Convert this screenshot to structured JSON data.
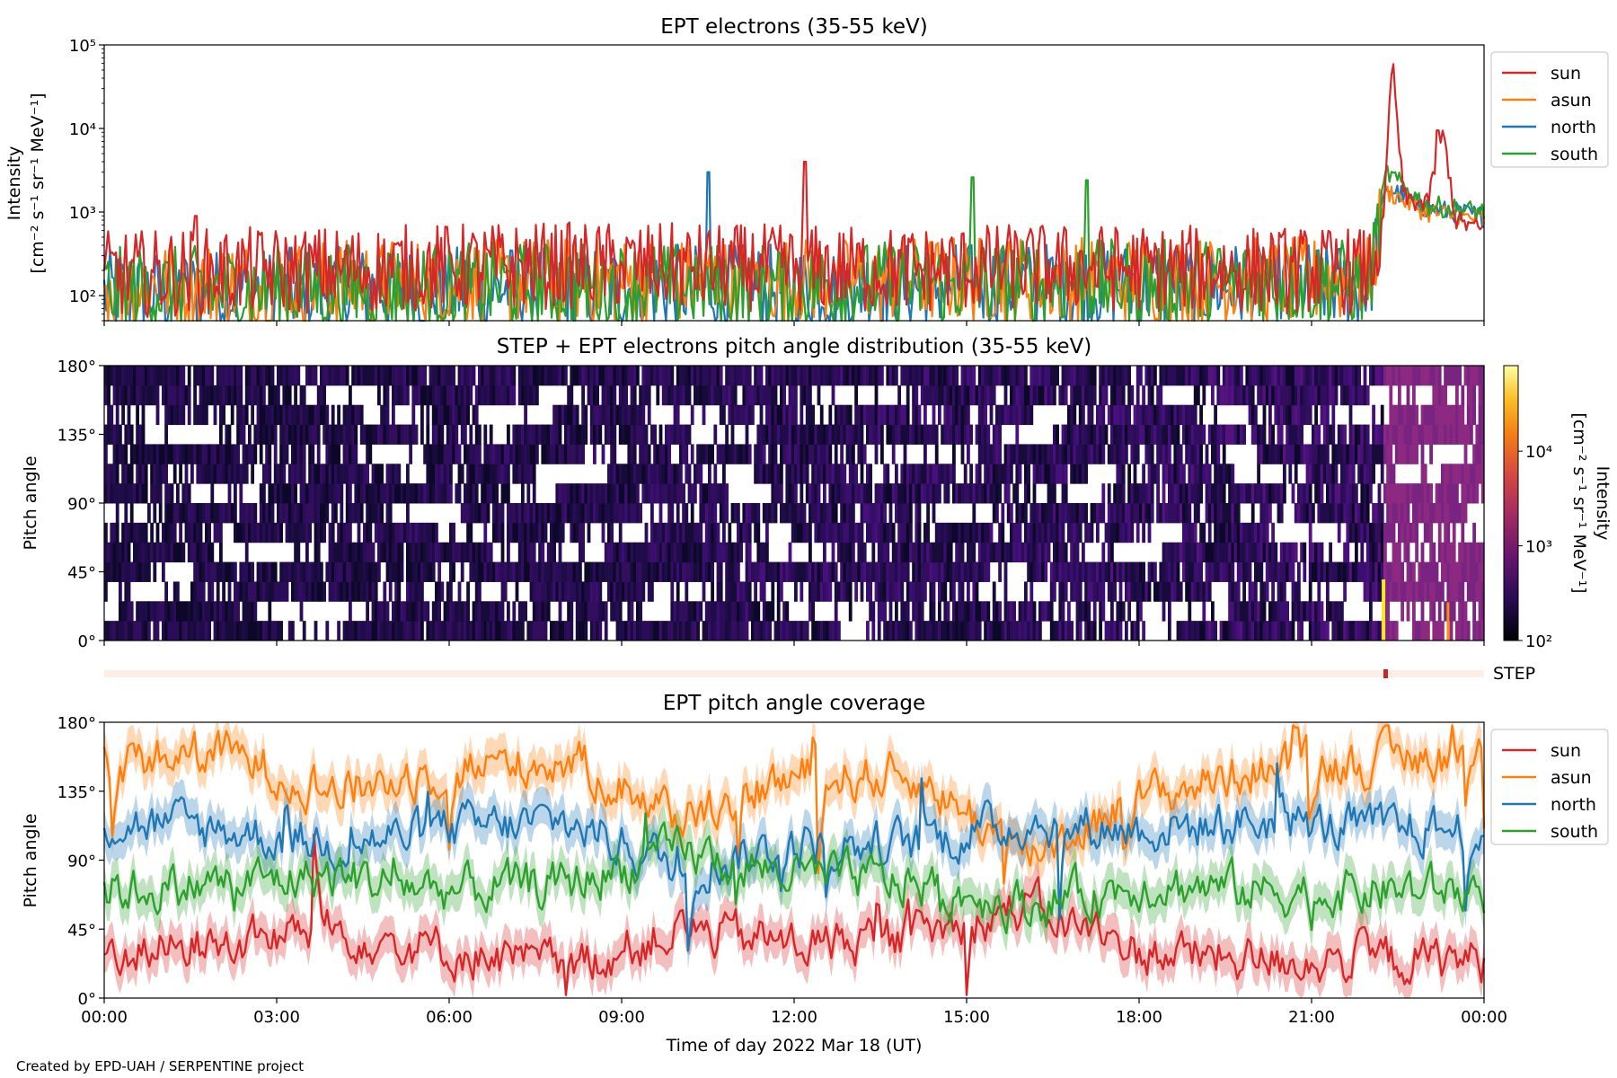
{
  "footer": "Created by EPD-UAH / SERPENTINE project",
  "xlabel": "Time of day 2022 Mar 18 (UT)",
  "x_ticks": [
    "00:00",
    "03:00",
    "06:00",
    "09:00",
    "12:00",
    "15:00",
    "18:00",
    "21:00",
    "00:00"
  ],
  "chart_data": [
    {
      "type": "line",
      "title": "EPT electrons (35-55 keV)",
      "ylabel_line1": "Intensity",
      "ylabel_line2": "[cm⁻² s⁻¹ sr⁻¹ MeV⁻¹]",
      "y_scale": "log",
      "ylim": [
        50,
        100000
      ],
      "y_ticks": [
        "10²",
        "10³",
        "10⁴",
        "10⁵"
      ],
      "xlim_hours": [
        0,
        24
      ],
      "legend_position": "right, outside top",
      "series": [
        {
          "name": "sun",
          "color": "#d62728",
          "x": [
            0,
            2,
            4,
            6,
            8,
            10,
            12,
            14,
            16,
            18,
            20,
            22,
            22.25,
            22.4,
            22.6,
            23,
            23.3,
            23.5,
            24
          ],
          "y": [
            200,
            220,
            230,
            250,
            260,
            250,
            240,
            230,
            250,
            240,
            230,
            220,
            700,
            70000,
            1500,
            1200,
            9000,
            800,
            600
          ],
          "spikes": [
            {
              "x": 1.6,
              "y": 900
            },
            {
              "x": 12.2,
              "y": 4000
            },
            {
              "x": 23.2,
              "y": 9500
            }
          ]
        },
        {
          "name": "asun",
          "color": "#ff7f0e",
          "x": [
            0,
            4,
            8,
            12,
            16,
            20,
            22,
            22.3,
            23,
            24
          ],
          "y": [
            150,
            160,
            170,
            170,
            180,
            170,
            170,
            1800,
            1000,
            800
          ]
        },
        {
          "name": "north",
          "color": "#1f77b4",
          "x": [
            0,
            4,
            8,
            12,
            16,
            20,
            22,
            22.3,
            23,
            24
          ],
          "y": [
            120,
            130,
            140,
            140,
            150,
            150,
            150,
            2000,
            1100,
            900
          ],
          "spikes": [
            {
              "x": 10.5,
              "y": 3000
            }
          ]
        },
        {
          "name": "south",
          "color": "#2ca02c",
          "x": [
            0,
            4,
            8,
            12,
            16,
            20,
            22,
            22.3,
            23,
            24
          ],
          "y": [
            130,
            140,
            150,
            150,
            160,
            160,
            160,
            3000,
            1200,
            1000
          ],
          "spikes": [
            {
              "x": 15.1,
              "y": 2600
            },
            {
              "x": 17.1,
              "y": 2400
            }
          ]
        }
      ]
    },
    {
      "type": "heatmap",
      "title": "STEP + EPT electrons pitch angle distribution (35-55 keV)",
      "ylabel": "Pitch angle",
      "ylim": [
        0,
        180
      ],
      "y_ticks": [
        "0°",
        "45°",
        "90°",
        "135°",
        "180°"
      ],
      "colorbar": {
        "label_line1": "Intensity",
        "label_line2": "[cm⁻² s⁻¹ sr⁻¹ MeV⁻¹]",
        "scale": "log",
        "range": [
          100,
          80000
        ],
        "ticks": [
          "10²",
          "10³",
          "10⁴"
        ],
        "colormap": "inferno"
      },
      "note": "background intensity ~10²–3×10² before 22:15 UT, ~10³ after 22:15 UT, with gaps near 25°, 70°, 110° and 150° pitch angle"
    },
    {
      "type": "bar",
      "label": "STEP",
      "color": "#fdeee6",
      "marker": {
        "x_hour": 22.25,
        "color": "#c0282e"
      }
    },
    {
      "type": "line",
      "title": "EPT pitch angle coverage",
      "ylabel": "Pitch angle",
      "ylim": [
        0,
        180
      ],
      "y_ticks": [
        "0°",
        "45°",
        "90°",
        "135°",
        "180°"
      ],
      "xlim_hours": [
        0,
        24
      ],
      "legend_position": "right, outside top",
      "series": [
        {
          "name": "sun",
          "color": "#d62728",
          "x": [
            0,
            2,
            4,
            6,
            8,
            10,
            12,
            14,
            16,
            18,
            20,
            22,
            24
          ],
          "y": [
            30,
            35,
            45,
            30,
            20,
            45,
            35,
            40,
            60,
            30,
            25,
            25,
            25
          ]
        },
        {
          "name": "asun",
          "color": "#ff7f0e",
          "x": [
            0,
            2,
            4,
            6,
            8,
            10,
            12,
            14,
            16,
            18,
            20,
            22,
            24
          ],
          "y": [
            155,
            160,
            135,
            150,
            155,
            120,
            145,
            145,
            95,
            130,
            150,
            155,
            160
          ]
        },
        {
          "name": "north",
          "color": "#1f77b4",
          "x": [
            0,
            2,
            4,
            6,
            8,
            10,
            12,
            14,
            16,
            18,
            20,
            22,
            24
          ],
          "y": [
            115,
            110,
            100,
            110,
            115,
            85,
            100,
            100,
            115,
            110,
            115,
            110,
            110
          ]
        },
        {
          "name": "south",
          "color": "#2ca02c",
          "x": [
            0,
            2,
            4,
            6,
            8,
            10,
            12,
            14,
            16,
            18,
            20,
            22,
            24
          ],
          "y": [
            70,
            75,
            80,
            70,
            75,
            95,
            80,
            75,
            60,
            75,
            70,
            70,
            70
          ]
        }
      ]
    }
  ]
}
